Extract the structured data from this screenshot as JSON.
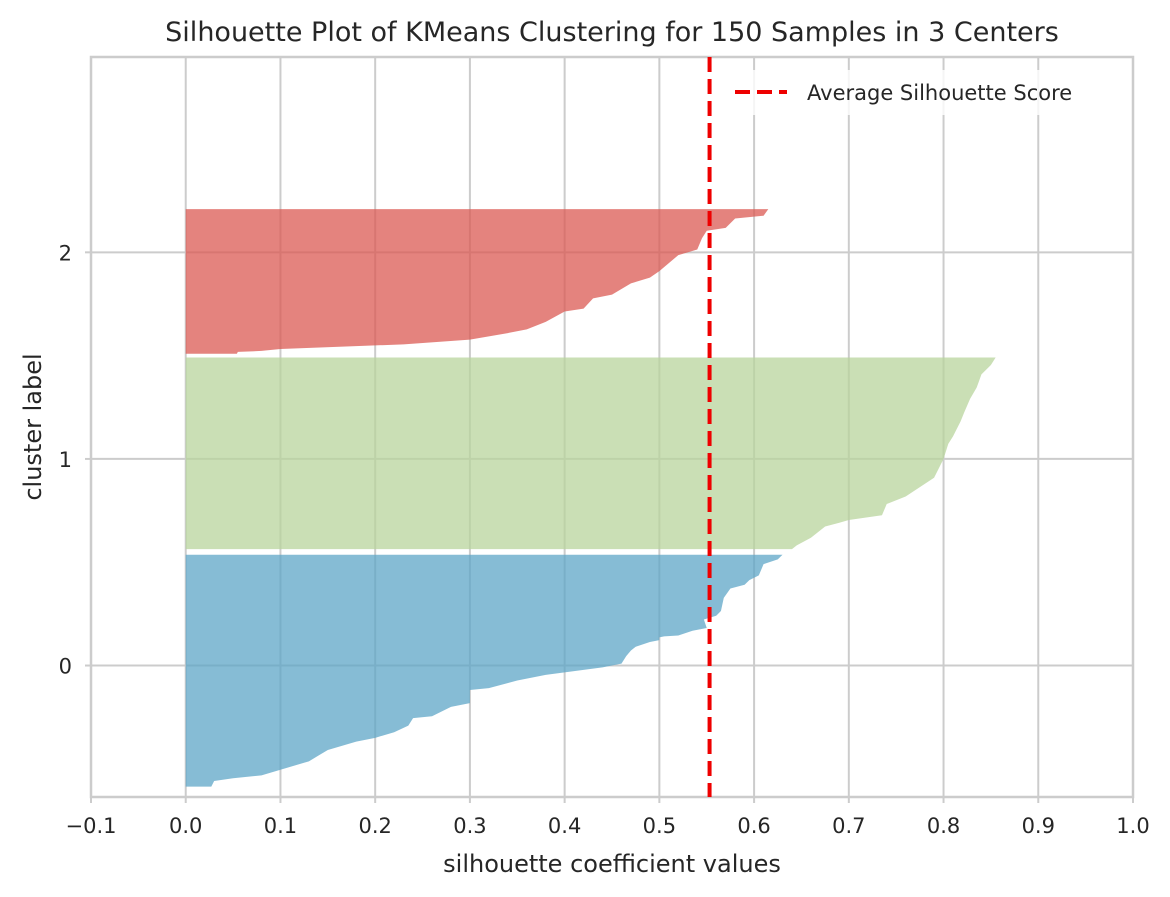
{
  "chart_data": {
    "type": "area",
    "title": "Silhouette Plot of KMeans Clustering for 150 Samples in 3 Centers",
    "xlabel": "silhouette coefficient values",
    "ylabel": "cluster label",
    "xlim": [
      -0.1,
      1.0
    ],
    "ylim": [
      -0.7,
      3.24
    ],
    "x_ticks": [
      -0.1,
      0.0,
      0.1,
      0.2,
      0.3,
      0.4,
      0.5,
      0.6,
      0.7,
      0.8,
      0.9,
      1.0
    ],
    "x_tick_labels": [
      "−0.1",
      "0.0",
      "0.1",
      "0.2",
      "0.3",
      "0.4",
      "0.5",
      "0.6",
      "0.7",
      "0.8",
      "0.9",
      "1.0"
    ],
    "y_ticks": [
      0,
      1.1,
      2.2
    ],
    "y_tick_labels": [
      "0",
      "1",
      "2"
    ],
    "grid": true,
    "legend_position": "top-right",
    "average_line": {
      "label": "Average Silhouette Score",
      "value": 0.553,
      "color": "#ee0000"
    },
    "series": [
      {
        "label": "0",
        "color": "#5da5c7",
        "y_range": [
          -0.645,
          0.59
        ],
        "profile": [
          [
            0.63,
            0.59
          ],
          [
            0.625,
            0.565
          ],
          [
            0.61,
            0.54
          ],
          [
            0.605,
            0.48
          ],
          [
            0.595,
            0.455
          ],
          [
            0.59,
            0.43
          ],
          [
            0.575,
            0.41
          ],
          [
            0.568,
            0.36
          ],
          [
            0.565,
            0.29
          ],
          [
            0.56,
            0.265
          ],
          [
            0.547,
            0.245
          ],
          [
            0.55,
            0.2
          ],
          [
            0.535,
            0.185
          ],
          [
            0.52,
            0.16
          ],
          [
            0.505,
            0.155
          ],
          [
            0.5,
            0.15
          ],
          [
            0.5,
            0.135
          ],
          [
            0.49,
            0.125
          ],
          [
            0.475,
            0.1
          ],
          [
            0.47,
            0.08
          ],
          [
            0.465,
            0.05
          ],
          [
            0.46,
            0.01
          ],
          [
            0.45,
            0.0
          ],
          [
            0.44,
            -0.01
          ],
          [
            0.38,
            -0.05
          ],
          [
            0.37,
            -0.06
          ],
          [
            0.36,
            -0.07
          ],
          [
            0.35,
            -0.08
          ],
          [
            0.32,
            -0.12
          ],
          [
            0.3,
            -0.13
          ],
          [
            0.3,
            -0.2
          ],
          [
            0.28,
            -0.22
          ],
          [
            0.26,
            -0.27
          ],
          [
            0.24,
            -0.28
          ],
          [
            0.235,
            -0.32
          ],
          [
            0.22,
            -0.355
          ],
          [
            0.2,
            -0.385
          ],
          [
            0.18,
            -0.405
          ],
          [
            0.15,
            -0.45
          ],
          [
            0.14,
            -0.48
          ],
          [
            0.13,
            -0.51
          ],
          [
            0.1,
            -0.555
          ],
          [
            0.08,
            -0.585
          ],
          [
            0.05,
            -0.6
          ],
          [
            0.03,
            -0.615
          ],
          [
            0.027,
            -0.645
          ]
        ]
      },
      {
        "label": "1",
        "color": "#b8d49c",
        "y_range": [
          0.62,
          1.64
        ],
        "profile": [
          [
            0.855,
            1.64
          ],
          [
            0.85,
            1.6
          ],
          [
            0.84,
            1.55
          ],
          [
            0.835,
            1.48
          ],
          [
            0.828,
            1.42
          ],
          [
            0.822,
            1.35
          ],
          [
            0.818,
            1.3
          ],
          [
            0.81,
            1.22
          ],
          [
            0.805,
            1.18
          ],
          [
            0.8,
            1.1
          ],
          [
            0.795,
            1.05
          ],
          [
            0.79,
            1.0
          ],
          [
            0.775,
            0.95
          ],
          [
            0.76,
            0.9
          ],
          [
            0.74,
            0.86
          ],
          [
            0.735,
            0.8
          ],
          [
            0.7,
            0.775
          ],
          [
            0.69,
            0.76
          ],
          [
            0.675,
            0.74
          ],
          [
            0.67,
            0.72
          ],
          [
            0.66,
            0.68
          ],
          [
            0.645,
            0.64
          ],
          [
            0.64,
            0.62
          ]
        ]
      },
      {
        "label": "2",
        "color": "#db5a53",
        "y_range": [
          1.66,
          2.43
        ],
        "profile": [
          [
            0.615,
            2.43
          ],
          [
            0.61,
            2.395
          ],
          [
            0.58,
            2.38
          ],
          [
            0.57,
            2.33
          ],
          [
            0.55,
            2.315
          ],
          [
            0.545,
            2.275
          ],
          [
            0.54,
            2.215
          ],
          [
            0.52,
            2.185
          ],
          [
            0.5,
            2.1
          ],
          [
            0.49,
            2.065
          ],
          [
            0.47,
            2.035
          ],
          [
            0.45,
            1.975
          ],
          [
            0.43,
            1.955
          ],
          [
            0.42,
            1.9
          ],
          [
            0.4,
            1.885
          ],
          [
            0.38,
            1.83
          ],
          [
            0.36,
            1.79
          ],
          [
            0.34,
            1.77
          ],
          [
            0.3,
            1.735
          ],
          [
            0.23,
            1.71
          ],
          [
            0.1,
            1.685
          ],
          [
            0.08,
            1.675
          ],
          [
            0.055,
            1.67
          ],
          [
            0.054,
            1.66
          ]
        ]
      }
    ]
  }
}
